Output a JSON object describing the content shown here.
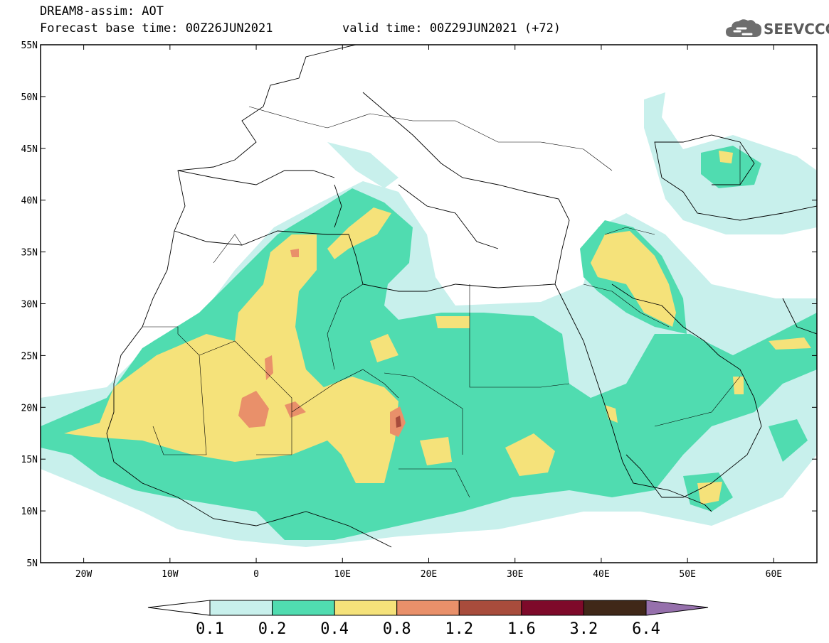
{
  "header": {
    "title": "DREAM8-assim: AOT",
    "base_time": "Forecast base time: 00Z26JUN2021",
    "valid_time": "valid time: 00Z29JUN2021 (+72)"
  },
  "logo": {
    "text": "SEEVCCC",
    "icon": "cloud-icon"
  },
  "map": {
    "lon_range": [
      -25,
      65
    ],
    "lat_range": [
      5,
      55
    ],
    "lat_ticks": [
      {
        "v": 55,
        "label": "55N"
      },
      {
        "v": 50,
        "label": "50N"
      },
      {
        "v": 45,
        "label": "45N"
      },
      {
        "v": 40,
        "label": "40N"
      },
      {
        "v": 35,
        "label": "35N"
      },
      {
        "v": 30,
        "label": "30N"
      },
      {
        "v": 25,
        "label": "25N"
      },
      {
        "v": 20,
        "label": "20N"
      },
      {
        "v": 15,
        "label": "15N"
      },
      {
        "v": 10,
        "label": "10N"
      },
      {
        "v": 5,
        "label": "5N"
      }
    ],
    "lon_ticks": [
      {
        "v": -20,
        "label": "20W"
      },
      {
        "v": -10,
        "label": "10W"
      },
      {
        "v": 0,
        "label": "0"
      },
      {
        "v": 10,
        "label": "10E"
      },
      {
        "v": 20,
        "label": "20E"
      },
      {
        "v": 30,
        "label": "30E"
      },
      {
        "v": 40,
        "label": "40E"
      },
      {
        "v": 50,
        "label": "50E"
      },
      {
        "v": 60,
        "label": "60E"
      }
    ]
  },
  "colorbar": {
    "colors": [
      "#c8f0ec",
      "#50dcb0",
      "#f5e27a",
      "#e9906a",
      "#a84c3c",
      "#7e0a2a",
      "#402818"
    ],
    "under_color": "#ffffff",
    "over_color": "#9670ac",
    "labels": [
      "0.1",
      "0.2",
      "0.4",
      "0.8",
      "1.2",
      "1.6",
      "3.2",
      "6.4"
    ]
  }
}
